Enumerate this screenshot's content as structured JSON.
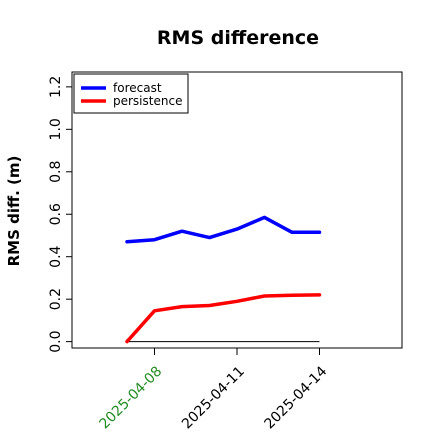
{
  "chart_data": {
    "type": "line",
    "title": "RMS difference",
    "xlabel": "",
    "ylabel": "RMS diff. (m)",
    "x": [
      "2025-04-07",
      "2025-04-08",
      "2025-04-09",
      "2025-04-10",
      "2025-04-11",
      "2025-04-12",
      "2025-04-13",
      "2025-04-14"
    ],
    "xticks": [
      "2025-04-08",
      "2025-04-11",
      "2025-04-14"
    ],
    "xtick_colors": [
      "#228b22",
      "#000000",
      "#000000"
    ],
    "xlim": [
      "2025-04-05",
      "2025-04-17"
    ],
    "yticks": [
      "0.0",
      "0.2",
      "0.4",
      "0.6",
      "0.8",
      "1.0",
      "1.2"
    ],
    "ylim": [
      -0.03,
      1.27
    ],
    "grid": false,
    "legend_position": "top-left",
    "reference_line": {
      "y": 0.0,
      "color": "#000000"
    },
    "series": [
      {
        "name": "forecast",
        "color": "#0000ff",
        "values": [
          0.47,
          0.48,
          0.52,
          0.49,
          0.53,
          0.585,
          0.515,
          0.515
        ]
      },
      {
        "name": "persistence",
        "color": "#ff0000",
        "values": [
          0.0,
          0.145,
          0.165,
          0.17,
          0.19,
          0.215,
          0.218,
          0.22
        ]
      }
    ]
  }
}
